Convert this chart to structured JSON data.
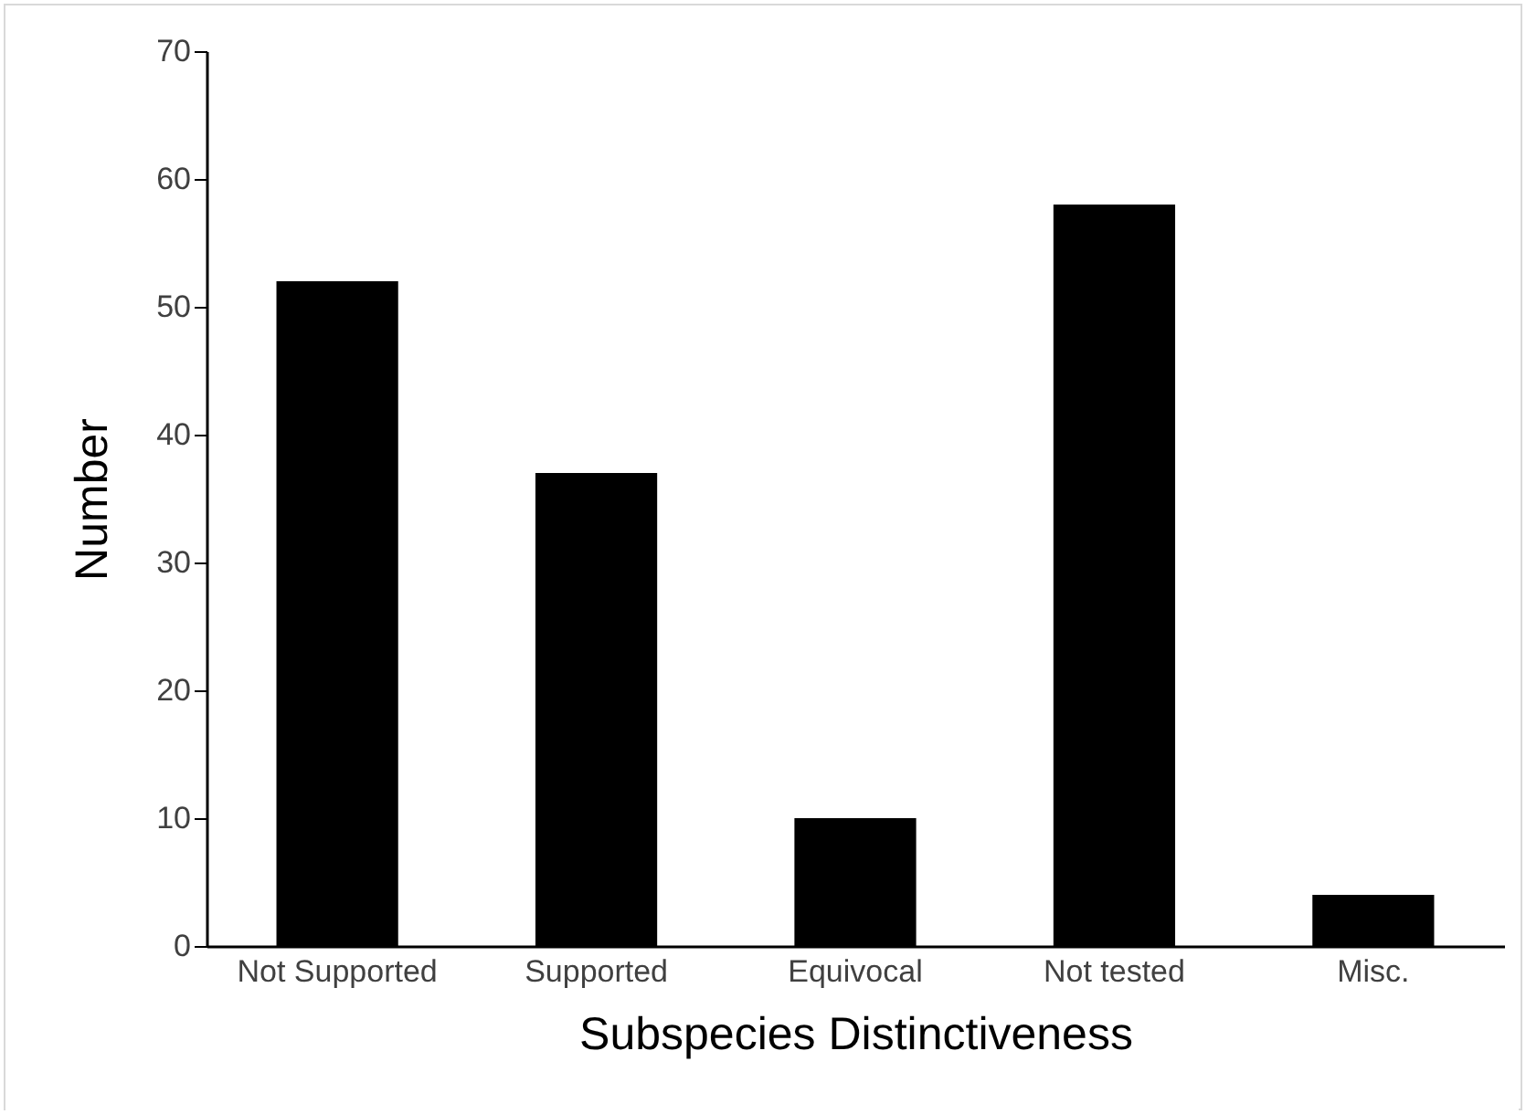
{
  "chart_data": {
    "type": "bar",
    "xlabel": "Subspecies Distinctiveness",
    "ylabel": "Number",
    "categories": [
      "Not Supported",
      "Supported",
      "Equivocal",
      "Not tested",
      "Misc."
    ],
    "values": [
      52,
      37,
      10,
      58,
      4
    ],
    "color": "#000000",
    "ylim": [
      0,
      70
    ],
    "yticks": [
      0,
      10,
      20,
      30,
      40,
      50,
      60,
      70
    ],
    "grid": false
  }
}
